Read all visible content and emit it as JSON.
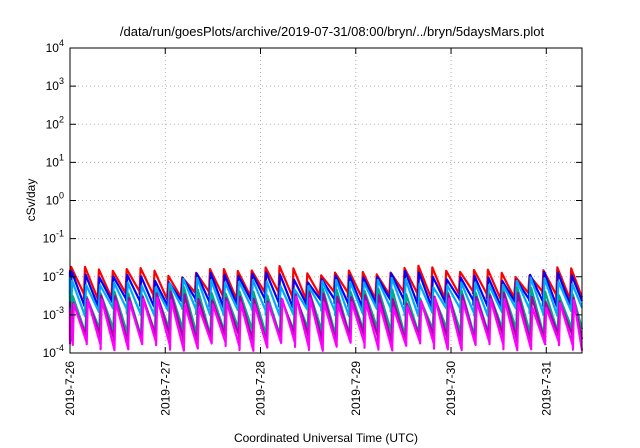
{
  "chart_data": {
    "type": "line",
    "title": "/data/run/goesPlots/archive/2019-07-31/08:00/bryn/../bryn/5daysMars.plot",
    "xlabel": "Coordinated Universal Time (UTC)",
    "ylabel": "cSv/day",
    "yscale": "log",
    "ylim": [
      0.0001,
      10000
    ],
    "xlim": [
      "2019-07-26",
      "2019-07-31T09:00"
    ],
    "grid": true,
    "y_ticks": [
      {
        "base": "10",
        "exp": "-4"
      },
      {
        "base": "10",
        "exp": "-3"
      },
      {
        "base": "10",
        "exp": "-2"
      },
      {
        "base": "10",
        "exp": "-1"
      },
      {
        "base": "10",
        "exp": "0"
      },
      {
        "base": "10",
        "exp": "1"
      },
      {
        "base": "10",
        "exp": "2"
      },
      {
        "base": "10",
        "exp": "3"
      },
      {
        "base": "10",
        "exp": "4"
      }
    ],
    "x_ticks": [
      "2019-7-26",
      "2019-7-27",
      "2019-7-28",
      "2019-7-29",
      "2019-7-30",
      "2019-7-31"
    ],
    "series": [
      {
        "color": "#ff0000",
        "peak": 0.0145,
        "trough": 0.0035,
        "period_hours": 3.5
      },
      {
        "color": "#0000ff",
        "peak": 0.0105,
        "trough": 0.0022,
        "period_hours": 3.5
      },
      {
        "color": "#00aaff",
        "peak": 0.0072,
        "trough": 0.0013,
        "period_hours": 3.5
      },
      {
        "color": "#00aa88",
        "peak": 0.004,
        "trough": 0.00038,
        "period_hours": 3.5
      },
      {
        "color": "#aa00aa",
        "peak": 0.003,
        "trough": 0.00026,
        "period_hours": 3.5
      },
      {
        "color": "#ff00ff",
        "peak": 0.0022,
        "trough": 0.00016,
        "period_hours": 3.5
      }
    ]
  }
}
